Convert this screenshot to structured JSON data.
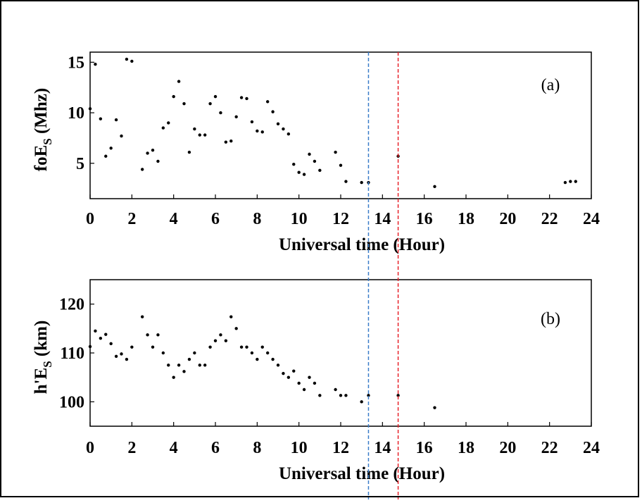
{
  "colors": {
    "vline_blue": "#3b7dc9",
    "vline_red": "#e8222a",
    "points": "#000000"
  },
  "chart_data": [
    {
      "type": "scatter",
      "panel_label": "(a)",
      "xlabel": "Universal time (Hour)",
      "ylabel_main": "foE",
      "ylabel_sub": "S",
      "ylabel_unit": " (Mhz)",
      "xlim": [
        0,
        24
      ],
      "ylim": [
        1.5,
        16
      ],
      "xticks": [
        0,
        2,
        4,
        6,
        8,
        10,
        12,
        14,
        16,
        18,
        20,
        22,
        24
      ],
      "yticks": [
        5,
        10,
        15
      ],
      "vlines": [
        13.33,
        14.75
      ],
      "x": [
        0.0,
        0.25,
        0.5,
        0.75,
        1.0,
        1.25,
        1.5,
        1.75,
        2.0,
        2.5,
        2.75,
        3.0,
        3.25,
        3.5,
        3.75,
        4.0,
        4.25,
        4.5,
        4.75,
        5.0,
        5.25,
        5.5,
        5.75,
        6.0,
        6.25,
        6.5,
        6.75,
        7.0,
        7.25,
        7.5,
        7.75,
        8.0,
        8.25,
        8.5,
        8.75,
        9.0,
        9.25,
        9.5,
        9.75,
        10.0,
        10.25,
        10.5,
        10.75,
        11.0,
        11.75,
        12.0,
        12.25,
        13.0,
        13.33,
        14.75,
        16.5,
        22.75,
        23.0,
        23.25
      ],
      "y": [
        10.4,
        14.8,
        9.4,
        5.7,
        6.5,
        9.3,
        7.7,
        15.3,
        15.1,
        4.4,
        6.0,
        6.3,
        5.2,
        8.5,
        9.0,
        11.6,
        13.1,
        10.9,
        6.1,
        8.4,
        7.8,
        7.8,
        10.9,
        11.6,
        10.0,
        7.1,
        7.2,
        9.6,
        11.5,
        11.4,
        9.1,
        8.2,
        8.1,
        11.1,
        10.1,
        8.9,
        8.4,
        7.9,
        4.9,
        4.1,
        3.9,
        5.9,
        5.2,
        4.3,
        6.1,
        4.8,
        3.2,
        3.1,
        3.1,
        5.7,
        2.7,
        3.1,
        3.2,
        3.2
      ]
    },
    {
      "type": "scatter",
      "panel_label": "(b)",
      "xlabel": "Universal time (Hour)",
      "ylabel_main": "h'E",
      "ylabel_sub": "S",
      "ylabel_unit": " (km)",
      "xlim": [
        0,
        24
      ],
      "ylim": [
        95,
        125
      ],
      "xticks": [
        0,
        2,
        4,
        6,
        8,
        10,
        12,
        14,
        16,
        18,
        20,
        22,
        24
      ],
      "yticks": [
        100,
        110,
        120
      ],
      "vlines": [
        13.33,
        14.75
      ],
      "x": [
        0.0,
        0.25,
        0.5,
        0.75,
        1.0,
        1.25,
        1.5,
        1.75,
        2.0,
        2.5,
        2.75,
        3.0,
        3.25,
        3.5,
        3.75,
        4.0,
        4.25,
        4.5,
        4.75,
        5.0,
        5.25,
        5.5,
        5.75,
        6.0,
        6.25,
        6.5,
        6.75,
        7.0,
        7.25,
        7.5,
        7.75,
        8.0,
        8.25,
        8.5,
        8.75,
        9.0,
        9.25,
        9.5,
        9.75,
        10.0,
        10.25,
        10.5,
        10.75,
        11.0,
        11.75,
        12.0,
        12.25,
        13.0,
        13.33,
        14.75,
        16.5
      ],
      "y": [
        111.3,
        114.5,
        113.0,
        113.8,
        111.9,
        109.3,
        109.8,
        108.7,
        111.2,
        117.4,
        113.7,
        111.2,
        113.7,
        110.0,
        107.5,
        105.0,
        107.5,
        106.2,
        108.7,
        110.0,
        107.5,
        107.5,
        111.2,
        112.5,
        113.7,
        112.5,
        117.4,
        115.0,
        111.2,
        111.2,
        110.0,
        108.7,
        111.2,
        110.0,
        108.7,
        107.5,
        105.8,
        105.0,
        106.3,
        103.8,
        102.5,
        105.0,
        103.8,
        101.3,
        102.5,
        101.3,
        101.3,
        100.0,
        101.3,
        101.3,
        98.8
      ]
    }
  ]
}
